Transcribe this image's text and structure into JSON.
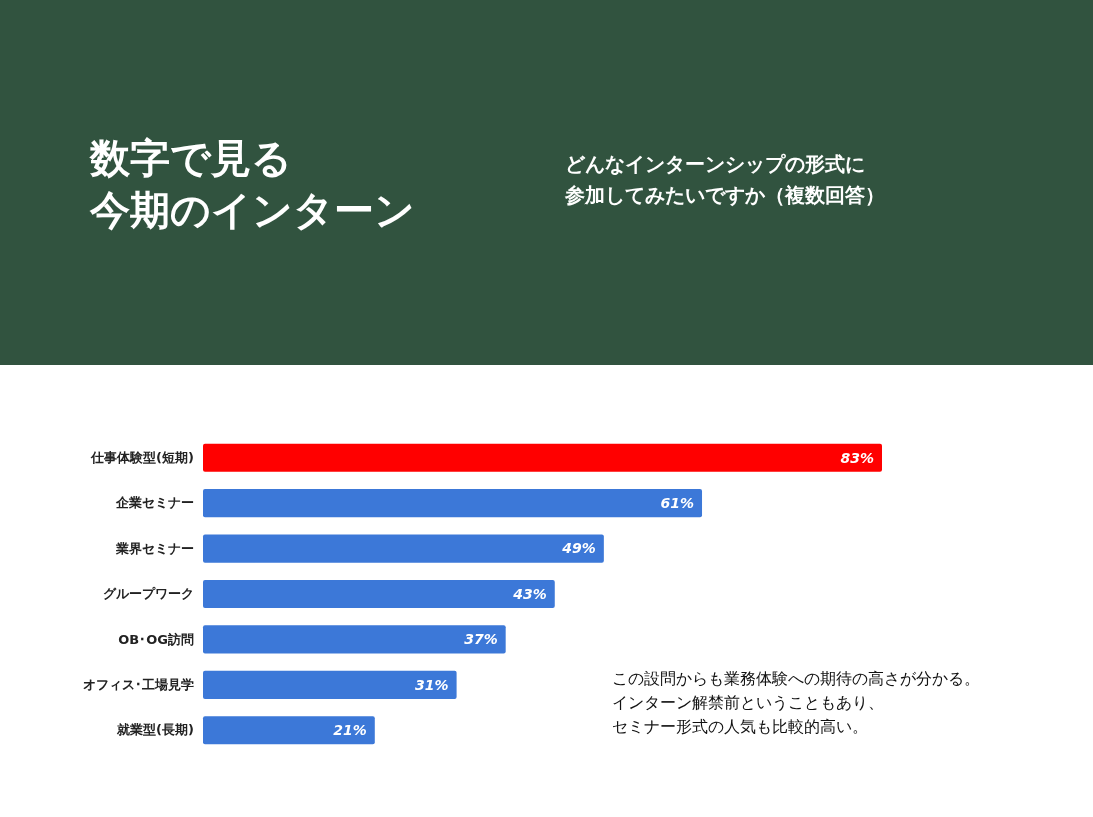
{
  "chart_data": {
    "type": "bar",
    "orientation": "horizontal",
    "title": "数字で見る今期のインターン",
    "subtitle": "どんなインターンシップの形式に参加してみたいですか（複数回答）",
    "categories": [
      "仕事体験型(短期)",
      "企業セミナー",
      "業界セミナー",
      "グループワーク",
      "OB･OG訪問",
      "オフィス･工場見学",
      "就業型(長期)"
    ],
    "values": [
      83,
      61,
      49,
      43,
      37,
      31,
      21
    ],
    "colors": [
      "#ff0000",
      "#3c78d8",
      "#3c78d8",
      "#3c78d8",
      "#3c78d8",
      "#3c78d8",
      "#3c78d8"
    ],
    "value_labels": [
      "83%",
      "61%",
      "49%",
      "43%",
      "37%",
      "31%",
      "21%"
    ],
    "annotations": [
      "この設問からも業務体験への期待の高さが分かる。",
      "インターン解禁前ということもあり、",
      "セミナー形式の人気も比較的高い。"
    ]
  }
}
